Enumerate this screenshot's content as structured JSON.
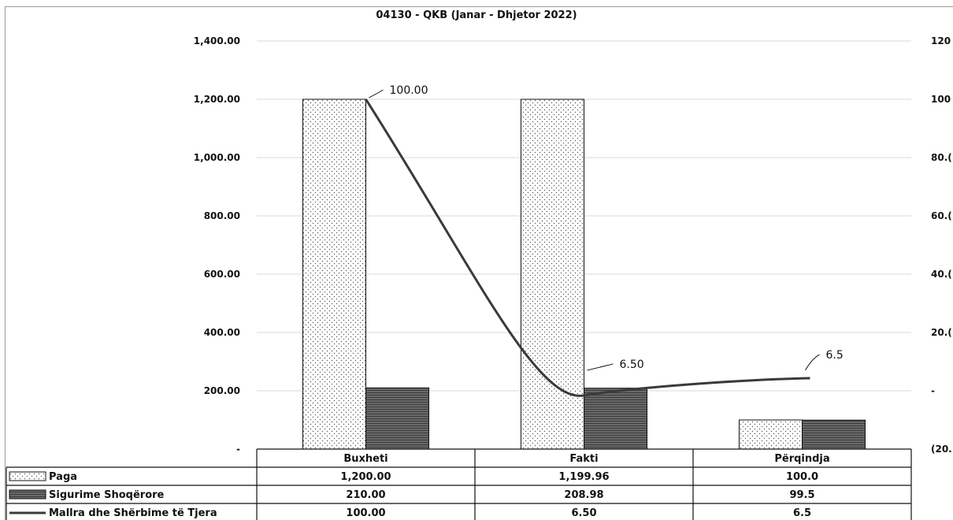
{
  "chart_data": {
    "type": "bar",
    "title": "04130 - QKB (Janar - Dhjetor 2022)",
    "categories": [
      "Buxheti",
      "Fakti",
      "Përqindja"
    ],
    "series": [
      {
        "name": "Paga",
        "values": [
          1200.0,
          1199.96,
          100.0
        ],
        "display": [
          "1,200.00",
          "1,199.96",
          "100.0"
        ],
        "axis": "left",
        "kind": "bar",
        "pattern": "dotted"
      },
      {
        "name": "Sigurime Shoqërore",
        "values": [
          210.0,
          208.98,
          99.5
        ],
        "display": [
          "210.00",
          "208.98",
          "99.5"
        ],
        "axis": "left",
        "kind": "bar",
        "pattern": "hatched"
      },
      {
        "name": "Mallra dhe Shërbime të Tjera",
        "values": [
          100.0,
          6.5,
          6.5
        ],
        "display": [
          "100.00",
          "6.50",
          "6.5"
        ],
        "labels": [
          "100.00",
          "6.50",
          "6.5"
        ],
        "axis": "right",
        "kind": "line"
      }
    ],
    "y_left": {
      "min": 0,
      "max": 1400,
      "step": 200,
      "tick_labels": [
        "-",
        "200.00",
        "400.00",
        "600.00",
        "800.00",
        "1,000.00",
        "1,200.00",
        "1,400.00"
      ]
    },
    "y_right": {
      "min": -20,
      "max": 120,
      "step": 20,
      "tick_labels": [
        "(20.",
        "-",
        "20.(",
        "40.(",
        "60.(",
        "80.(",
        "100",
        "120"
      ]
    },
    "grid": true,
    "legend": "data table below chart"
  }
}
